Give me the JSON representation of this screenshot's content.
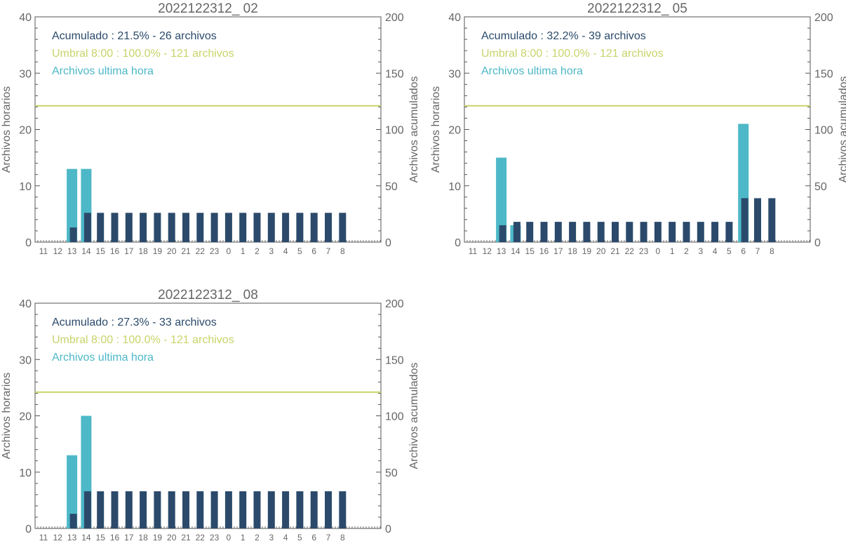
{
  "colors": {
    "hourly": "#4db8c8",
    "cumulative": "#2b4a6b",
    "threshold": "#c9d46a",
    "axis": "#555555",
    "text": "#666666"
  },
  "chart_data": [
    {
      "type": "bar",
      "title": "2022122312_ 02",
      "ylabel_left": "Archivos horarios",
      "ylabel_right": "Archivos acumulados",
      "ylim_left": [
        0,
        40
      ],
      "ylim_right": [
        0,
        200
      ],
      "yticks_left": [
        "0",
        "10",
        "20",
        "30",
        "40"
      ],
      "yticks_right": [
        "0",
        "50",
        "100",
        "150",
        "200"
      ],
      "categories": [
        "11",
        "12",
        "13",
        "14",
        "15",
        "16",
        "17",
        "18",
        "19",
        "20",
        "21",
        "22",
        "23",
        "0",
        "1",
        "2",
        "3",
        "4",
        "5",
        "6",
        "7",
        "8"
      ],
      "legend": {
        "acumulado": "Acumulado : 21.5% - 26 archivos",
        "umbral": "Umbral 8:00 : 100.0% - 121 archivos",
        "ultima": "Archivos ultima hora"
      },
      "threshold": 121,
      "series": [
        {
          "name": "Archivos ultima hora",
          "axis": "left",
          "values": [
            0,
            0,
            13,
            13,
            0,
            0,
            0,
            0,
            0,
            0,
            0,
            0,
            0,
            0,
            0,
            0,
            0,
            0,
            0,
            0,
            0,
            0
          ]
        },
        {
          "name": "Acumulado",
          "axis": "right",
          "values": [
            0,
            0,
            13,
            26,
            26,
            26,
            26,
            26,
            26,
            26,
            26,
            26,
            26,
            26,
            26,
            26,
            26,
            26,
            26,
            26,
            26,
            26
          ]
        }
      ]
    },
    {
      "type": "bar",
      "title": "2022122312_ 05",
      "ylabel_left": "Archivos horarios",
      "ylabel_right": "Archivos acumulados",
      "ylim_left": [
        0,
        40
      ],
      "ylim_right": [
        0,
        200
      ],
      "yticks_left": [
        "0",
        "10",
        "20",
        "30",
        "40"
      ],
      "yticks_right": [
        "0",
        "50",
        "100",
        "150",
        "200"
      ],
      "categories": [
        "11",
        "12",
        "13",
        "14",
        "15",
        "16",
        "17",
        "18",
        "19",
        "20",
        "21",
        "22",
        "23",
        "0",
        "1",
        "2",
        "3",
        "4",
        "5",
        "6",
        "7",
        "8"
      ],
      "legend": {
        "acumulado": "Acumulado : 32.2% - 39 archivos",
        "umbral": "Umbral 8:00 : 100.0% - 121 archivos",
        "ultima": "Archivos ultima hora"
      },
      "threshold": 121,
      "series": [
        {
          "name": "Archivos ultima hora",
          "axis": "left",
          "values": [
            0,
            0,
            15,
            3,
            0,
            0,
            0,
            0,
            0,
            0,
            0,
            0,
            0,
            0,
            0,
            0,
            0,
            0,
            0,
            21,
            0,
            0
          ]
        },
        {
          "name": "Acumulado",
          "axis": "right",
          "values": [
            0,
            0,
            15,
            18,
            18,
            18,
            18,
            18,
            18,
            18,
            18,
            18,
            18,
            18,
            18,
            18,
            18,
            18,
            18,
            39,
            39,
            39
          ]
        }
      ]
    },
    {
      "type": "bar",
      "title": "2022122312_ 08",
      "ylabel_left": "Archivos horarios",
      "ylabel_right": "Archivos acumulados",
      "ylim_left": [
        0,
        40
      ],
      "ylim_right": [
        0,
        200
      ],
      "yticks_left": [
        "0",
        "10",
        "20",
        "30",
        "40"
      ],
      "yticks_right": [
        "0",
        "50",
        "100",
        "150",
        "200"
      ],
      "categories": [
        "11",
        "12",
        "13",
        "14",
        "15",
        "16",
        "17",
        "18",
        "19",
        "20",
        "21",
        "22",
        "23",
        "0",
        "1",
        "2",
        "3",
        "4",
        "5",
        "6",
        "7",
        "8"
      ],
      "legend": {
        "acumulado": "Acumulado : 27.3% - 33 archivos",
        "umbral": "Umbral 8:00 : 100.0% - 121 archivos",
        "ultima": "Archivos ultima hora"
      },
      "threshold": 121,
      "series": [
        {
          "name": "Archivos ultima hora",
          "axis": "left",
          "values": [
            0,
            0,
            13,
            20,
            0,
            0,
            0,
            0,
            0,
            0,
            0,
            0,
            0,
            0,
            0,
            0,
            0,
            0,
            0,
            0,
            0,
            0
          ]
        },
        {
          "name": "Acumulado",
          "axis": "right",
          "values": [
            0,
            0,
            13,
            33,
            33,
            33,
            33,
            33,
            33,
            33,
            33,
            33,
            33,
            33,
            33,
            33,
            33,
            33,
            33,
            33,
            33,
            33
          ]
        }
      ]
    }
  ]
}
